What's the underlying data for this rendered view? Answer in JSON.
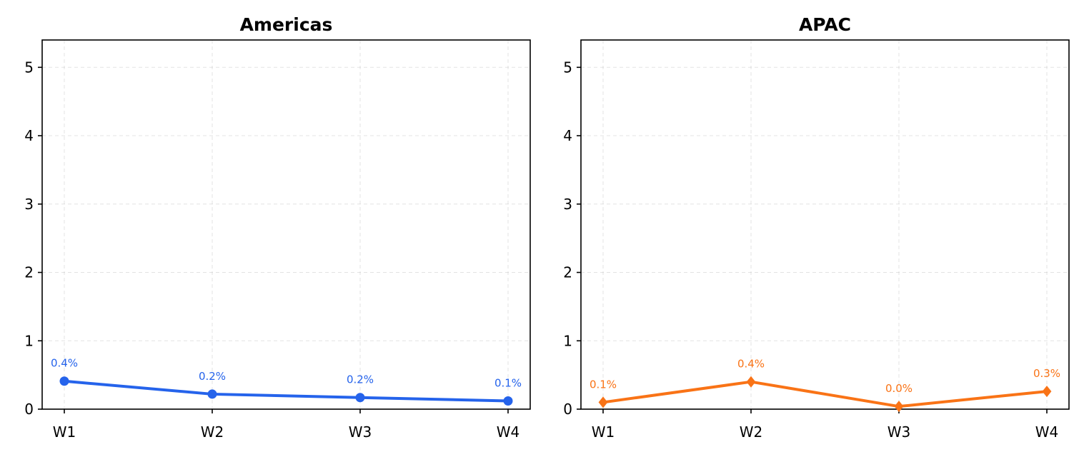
{
  "chart_data": [
    {
      "type": "line",
      "title": "Americas",
      "categories": [
        "W1",
        "W2",
        "W3",
        "W4"
      ],
      "series": [
        {
          "values": [
            0.41,
            0.22,
            0.17,
            0.12
          ],
          "labels": [
            "0.4%",
            "0.2%",
            "0.2%",
            "0.1%"
          ],
          "marker": "circle"
        }
      ],
      "color": "#2563eb",
      "ylim": [
        0,
        5.4
      ],
      "yticks": [
        "0",
        "1",
        "2",
        "3",
        "4",
        "5"
      ],
      "grid": true
    },
    {
      "type": "line",
      "title": "APAC",
      "categories": [
        "W1",
        "W2",
        "W3",
        "W4"
      ],
      "series": [
        {
          "values": [
            0.1,
            0.4,
            0.04,
            0.26
          ],
          "labels": [
            "0.1%",
            "0.4%",
            "0.0%",
            "0.3%"
          ],
          "marker": "diamond"
        }
      ],
      "color": "#f97316",
      "ylim": [
        0,
        5.4
      ],
      "yticks": [
        "0",
        "1",
        "2",
        "3",
        "4",
        "5"
      ],
      "grid": true
    }
  ]
}
